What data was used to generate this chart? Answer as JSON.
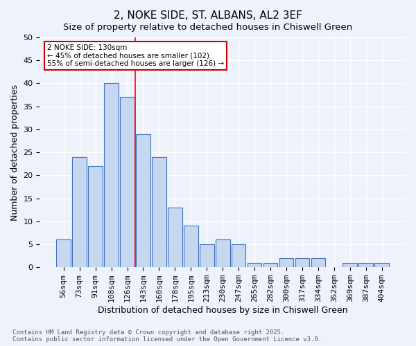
{
  "title1": "2, NOKE SIDE, ST. ALBANS, AL2 3EF",
  "title2": "Size of property relative to detached houses in Chiswell Green",
  "xlabel": "Distribution of detached houses by size in Chiswell Green",
  "ylabel": "Number of detached properties",
  "categories": [
    "56sqm",
    "73sqm",
    "91sqm",
    "108sqm",
    "126sqm",
    "143sqm",
    "160sqm",
    "178sqm",
    "195sqm",
    "213sqm",
    "230sqm",
    "247sqm",
    "265sqm",
    "282sqm",
    "300sqm",
    "317sqm",
    "334sqm",
    "352sqm",
    "369sqm",
    "387sqm",
    "404sqm"
  ],
  "values": [
    6,
    24,
    22,
    40,
    37,
    29,
    24,
    13,
    9,
    5,
    6,
    5,
    1,
    1,
    2,
    2,
    2,
    0,
    1,
    1,
    1
  ],
  "bar_color": "#c5d8f0",
  "bar_edge_color": "#4472c4",
  "red_line_index": 4.5,
  "annotation_text": "2 NOKE SIDE: 130sqm\n← 45% of detached houses are smaller (102)\n55% of semi-detached houses are larger (126) →",
  "annotation_box_color": "#ffffff",
  "annotation_box_edge": "#cc0000",
  "footnote": "Contains HM Land Registry data © Crown copyright and database right 2025.\nContains public sector information licensed under the Open Government Licence v3.0.",
  "ylim": [
    0,
    50
  ],
  "yticks": [
    0,
    5,
    10,
    15,
    20,
    25,
    30,
    35,
    40,
    45,
    50
  ],
  "background_color": "#eef2fb",
  "grid_color": "#ffffff",
  "title_fontsize": 11,
  "axis_label_fontsize": 9,
  "tick_fontsize": 8
}
